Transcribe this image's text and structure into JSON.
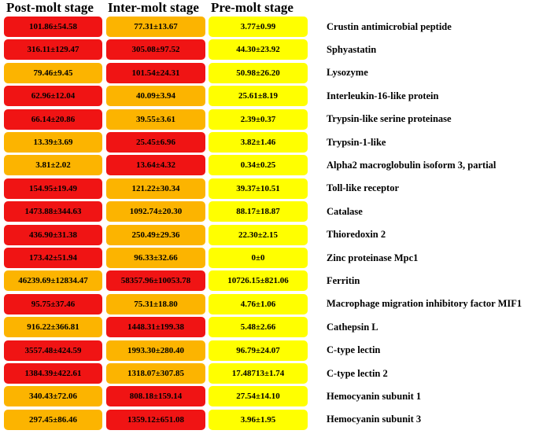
{
  "chart_data": {
    "type": "heatmap",
    "title": "",
    "columns": [
      "Post-molt stage",
      "Inter-molt stage",
      "Pre-molt stage"
    ],
    "rows": [
      {
        "name": "Crustin antimicrobial peptide",
        "values": [
          "101.86±54.58",
          "77.31±13.67",
          "3.77±0.99"
        ],
        "levels": [
          "high",
          "mid",
          "low"
        ]
      },
      {
        "name": "Sphyastatin",
        "values": [
          "316.11±129.47",
          "305.08±97.52",
          "44.30±23.92"
        ],
        "levels": [
          "high",
          "high",
          "low"
        ]
      },
      {
        "name": "Lysozyme",
        "values": [
          "79.46±9.45",
          "101.54±24.31",
          "50.98±26.20"
        ],
        "levels": [
          "mid",
          "high",
          "low"
        ]
      },
      {
        "name": "Interleukin-16-like protein",
        "values": [
          "62.96±12.04",
          "40.09±3.94",
          "25.61±8.19"
        ],
        "levels": [
          "high",
          "mid",
          "low"
        ]
      },
      {
        "name": "Trypsin-like serine proteinase",
        "values": [
          "66.14±20.86",
          "39.55±3.61",
          "2.39±0.37"
        ],
        "levels": [
          "high",
          "mid",
          "low"
        ]
      },
      {
        "name": "Trypsin-1-like",
        "values": [
          "13.39±3.69",
          "25.45±6.96",
          "3.82±1.46"
        ],
        "levels": [
          "mid",
          "high",
          "low"
        ]
      },
      {
        "name": "Alpha2 macroglobulin isoform 3, partial",
        "values": [
          "3.81±2.02",
          "13.64±4.32",
          "0.34±0.25"
        ],
        "levels": [
          "mid",
          "high",
          "low"
        ]
      },
      {
        "name": "Toll-like receptor",
        "values": [
          "154.95±19.49",
          "121.22±30.34",
          "39.37±10.51"
        ],
        "levels": [
          "high",
          "mid",
          "low"
        ]
      },
      {
        "name": "Catalase",
        "values": [
          "1473.88±344.63",
          "1092.74±20.30",
          "88.17±18.87"
        ],
        "levels": [
          "high",
          "mid",
          "low"
        ]
      },
      {
        "name": "Thioredoxin 2",
        "values": [
          "436.90±31.38",
          "250.49±29.36",
          "22.30±2.15"
        ],
        "levels": [
          "high",
          "mid",
          "low"
        ]
      },
      {
        "name": "Zinc proteinase Mpc1",
        "values": [
          "173.42±51.94",
          "96.33±32.66",
          "0±0"
        ],
        "levels": [
          "high",
          "mid",
          "low"
        ]
      },
      {
        "name": "Ferritin",
        "values": [
          "46239.69±12834.47",
          "58357.96±10053.78",
          "10726.15±821.06"
        ],
        "levels": [
          "mid",
          "high",
          "low"
        ]
      },
      {
        "name": "Macrophage migration inhibitory factor MIF1",
        "values": [
          "95.75±37.46",
          "75.31±18.80",
          "4.76±1.06"
        ],
        "levels": [
          "high",
          "mid",
          "low"
        ]
      },
      {
        "name": "Cathepsin L",
        "values": [
          "916.22±366.81",
          "1448.31±199.38",
          "5.48±2.66"
        ],
        "levels": [
          "mid",
          "high",
          "low"
        ]
      },
      {
        "name": "C-type lectin",
        "values": [
          "3557.48±424.59",
          "1993.30±280.40",
          "96.79±24.07"
        ],
        "levels": [
          "high",
          "mid",
          "low"
        ]
      },
      {
        "name": "C-type lectin 2",
        "values": [
          "1384.39±422.61",
          "1318.07±307.85",
          "17.48713±1.74"
        ],
        "levels": [
          "high",
          "mid",
          "low"
        ]
      },
      {
        "name": "Hemocyanin subunit 1",
        "values": [
          "340.43±72.06",
          "808.18±159.14",
          "27.54±14.10"
        ],
        "levels": [
          "mid",
          "high",
          "low"
        ]
      },
      {
        "name": "Hemocyanin subunit 3",
        "values": [
          "297.45±86.46",
          "1359.12±651.08",
          "3.96±1.95"
        ],
        "levels": [
          "mid",
          "high",
          "low"
        ]
      }
    ],
    "colors": {
      "high": "#f01414",
      "mid": "#fcb400",
      "low": "#ffff00"
    }
  }
}
